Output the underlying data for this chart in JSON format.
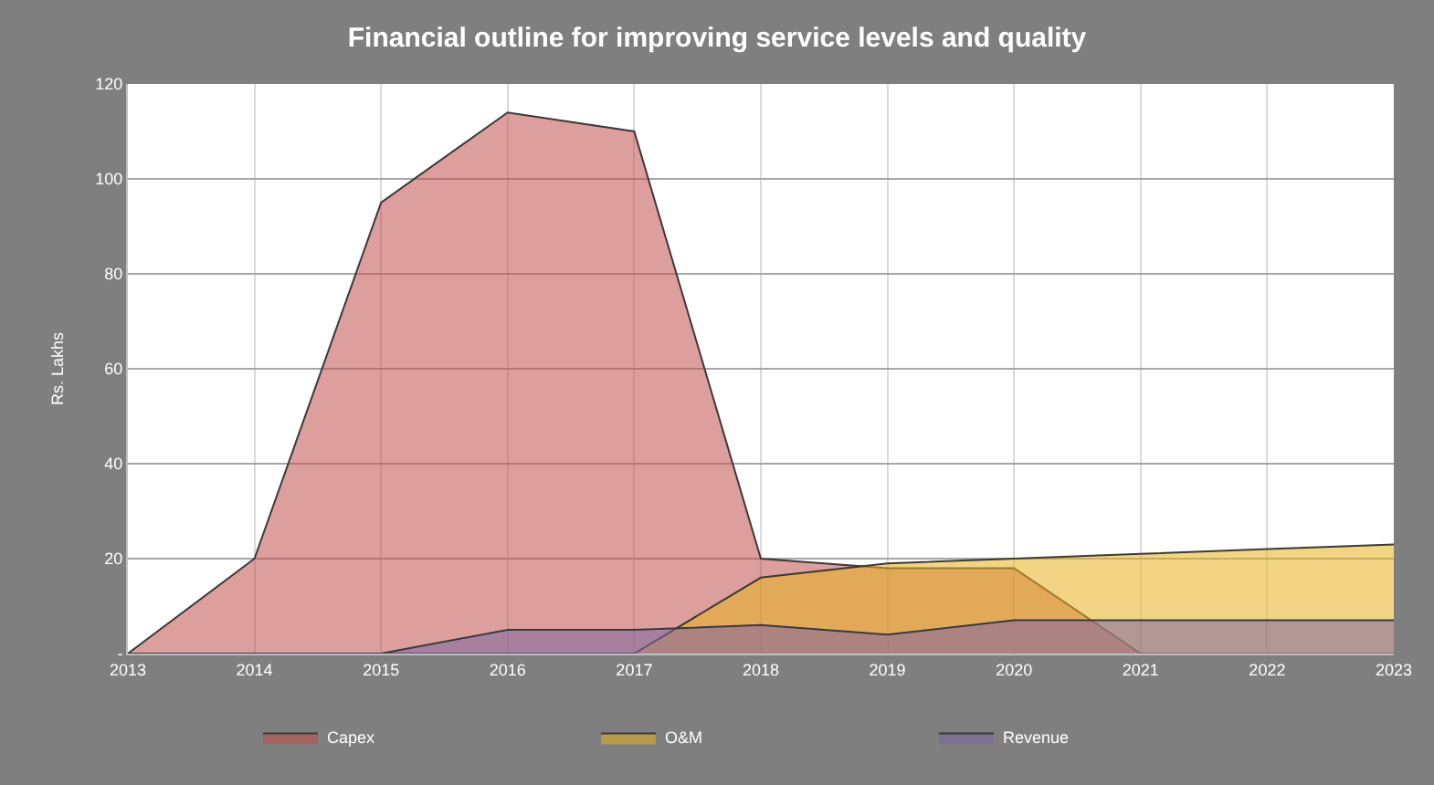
{
  "chart_data": {
    "type": "area",
    "title": "Financial outline for improving service levels and quality",
    "ylabel": "Rs. Lakhs",
    "x": [
      2013,
      2014,
      2015,
      2016,
      2017,
      2018,
      2019,
      2020,
      2021,
      2022,
      2023
    ],
    "series": [
      {
        "name": "Capex",
        "color": "#c0504d",
        "values": [
          0,
          20,
          95,
          114,
          110,
          20,
          18,
          18,
          0,
          0,
          0
        ]
      },
      {
        "name": "O&M",
        "color": "#e8b020",
        "values": [
          0,
          0,
          0,
          0,
          0,
          16,
          19,
          20,
          21,
          22,
          23
        ]
      },
      {
        "name": "Revenue",
        "color": "#8064a2",
        "values": [
          0,
          0,
          0,
          5,
          5,
          6,
          4,
          7,
          7,
          7,
          7
        ]
      }
    ],
    "xlim": [
      2013,
      2023
    ],
    "xticks": [
      2013,
      2014,
      2015,
      2016,
      2017,
      2018,
      2019,
      2020,
      2021,
      2022,
      2023
    ],
    "ylim": [
      0,
      120
    ],
    "yticks": [
      {
        "value": 0,
        "label": "-"
      },
      20,
      40,
      60,
      80,
      100,
      120
    ],
    "grid": true,
    "legend": "bottom"
  }
}
